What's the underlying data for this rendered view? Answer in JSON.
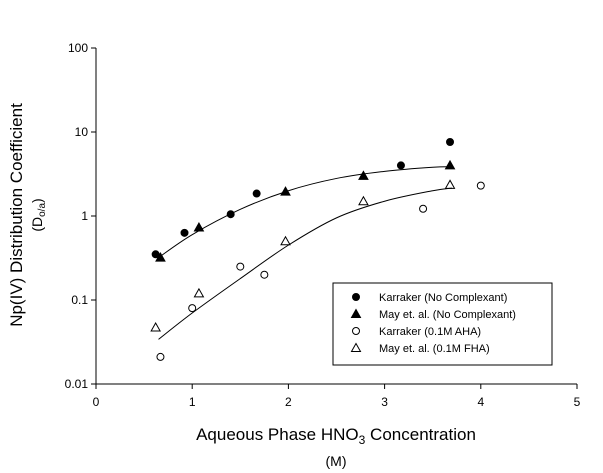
{
  "chart_data": {
    "type": "scatter",
    "ylabel": "Np(IV) Distribution Coefficient",
    "ylabel_unit": [
      "(D",
      "o/a",
      ")"
    ],
    "xlabel": [
      "Aqueous Phase HNO",
      "3",
      " Concentration"
    ],
    "xlabel_unit": "(M)",
    "xlim": [
      0,
      5
    ],
    "xticks": [
      0,
      1,
      2,
      3,
      4,
      5
    ],
    "ylim": [
      0.01,
      100
    ],
    "yticks": [
      100,
      10,
      1,
      0.1,
      0.01
    ],
    "log_y": true,
    "grid": false,
    "legend_loc": "lower right",
    "series": [
      {
        "name": "Karraker (No Complexant)",
        "marker": "circle",
        "filled": true,
        "color": "#000000",
        "x": [
          0.62,
          0.92,
          1.4,
          1.67,
          3.17,
          3.68
        ],
        "values": [
          0.35,
          0.63,
          1.05,
          1.85,
          4.0,
          7.6
        ]
      },
      {
        "name": "May et. al. (No Complexant)",
        "marker": "triangle",
        "filled": true,
        "color": "#000000",
        "x": [
          0.67,
          1.07,
          1.97,
          2.78,
          3.68
        ],
        "values": [
          0.32,
          0.73,
          1.95,
          3.0,
          4.0
        ]
      },
      {
        "name": "Karraker (0.1M AHA)",
        "marker": "circle",
        "filled": false,
        "color": "#000000",
        "x": [
          0.67,
          1.0,
          1.5,
          1.75,
          3.4,
          4.0
        ],
        "values": [
          0.021,
          0.08,
          0.25,
          0.2,
          1.22,
          2.3
        ]
      },
      {
        "name": "May et. al. (0.1M FHA)",
        "marker": "triangle",
        "filled": false,
        "color": "#000000",
        "x": [
          0.62,
          1.07,
          1.97,
          2.78,
          3.68
        ],
        "values": [
          0.047,
          0.12,
          0.5,
          1.5,
          2.35
        ]
      },
      {
        "type": "line",
        "color": "#000000",
        "x": [
          0.65,
          1.0,
          1.5,
          2.0,
          2.5,
          3.0,
          3.5,
          3.7
        ],
        "values": [
          0.32,
          0.6,
          1.2,
          2.0,
          2.8,
          3.4,
          3.8,
          3.85
        ]
      },
      {
        "type": "line",
        "color": "#000000",
        "x": [
          0.65,
          1.0,
          1.5,
          2.0,
          2.5,
          3.0,
          3.5,
          3.7
        ],
        "values": [
          0.034,
          0.07,
          0.18,
          0.45,
          0.95,
          1.5,
          2.0,
          2.15
        ]
      }
    ]
  }
}
